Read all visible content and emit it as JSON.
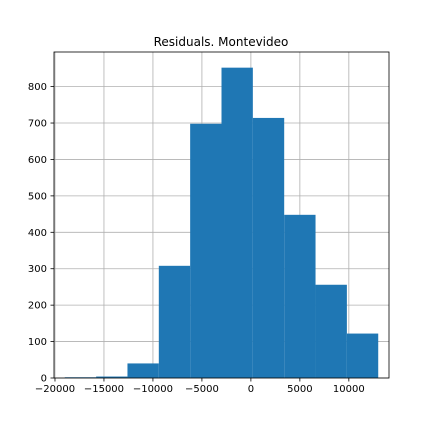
{
  "chart_data": {
    "type": "bar",
    "subtype": "histogram",
    "title": "Residuals. Montevideo",
    "xlabel": "",
    "ylabel": "",
    "bins": [
      {
        "x0": -19000,
        "x1": -15800,
        "count": 2
      },
      {
        "x0": -15800,
        "x1": -12600,
        "count": 4
      },
      {
        "x0": -12600,
        "x1": -9400,
        "count": 40
      },
      {
        "x0": -9400,
        "x1": -6200,
        "count": 308
      },
      {
        "x0": -6200,
        "x1": -3000,
        "count": 698
      },
      {
        "x0": -3000,
        "x1": 200,
        "count": 852
      },
      {
        "x0": 200,
        "x1": 3400,
        "count": 714
      },
      {
        "x0": 3400,
        "x1": 6600,
        "count": 448
      },
      {
        "x0": 6600,
        "x1": 9800,
        "count": 256
      },
      {
        "x0": 9800,
        "x1": 13000,
        "count": 122
      }
    ],
    "xlim": [
      -20100,
      14100
    ],
    "ylim": [
      0,
      895
    ],
    "xticks": [
      -20000,
      -15000,
      -10000,
      -5000,
      0,
      5000,
      10000
    ],
    "xtick_labels": [
      "−20000",
      "−15000",
      "−10000",
      "−5000",
      "0",
      "5000",
      "10000"
    ],
    "yticks": [
      0,
      100,
      200,
      300,
      400,
      500,
      600,
      700,
      800
    ],
    "ytick_labels": [
      "0",
      "100",
      "200",
      "300",
      "400",
      "500",
      "600",
      "700",
      "800"
    ],
    "grid": true,
    "bar_color": "#1f77b4",
    "grid_color": "#b0b0b0"
  }
}
